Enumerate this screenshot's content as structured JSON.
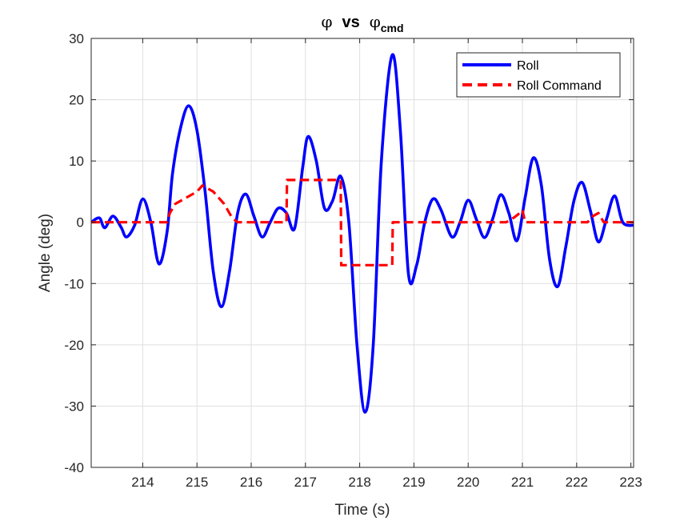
{
  "chart_data": {
    "type": "line",
    "title": {
      "symbol": "φ",
      "vs": "vs",
      "subscript": "cmd"
    },
    "xlabel": "Time (s)",
    "ylabel": "Angle (deg)",
    "xlim": [
      213.05,
      223.05
    ],
    "ylim": [
      -40,
      30
    ],
    "xticks": [
      214,
      215,
      216,
      217,
      218,
      219,
      220,
      221,
      222,
      223
    ],
    "yticks": [
      -40,
      -30,
      -20,
      -10,
      0,
      10,
      20,
      30
    ],
    "xtick_labels": [
      "214",
      "215",
      "216",
      "217",
      "218",
      "219",
      "220",
      "221",
      "222",
      "223"
    ],
    "ytick_labels": [
      "-40",
      "-30",
      "-20",
      "-10",
      "0",
      "10",
      "20",
      "30"
    ],
    "grid": true,
    "legend_placement": "top-right",
    "series": [
      {
        "name": "Roll",
        "color": "#0000ff",
        "style": "solid",
        "x": [
          213.05,
          213.2,
          213.3,
          213.45,
          213.6,
          213.7,
          213.85,
          214.0,
          214.15,
          214.3,
          214.45,
          214.55,
          214.7,
          214.85,
          215.0,
          215.15,
          215.3,
          215.45,
          215.6,
          215.75,
          215.9,
          216.05,
          216.2,
          216.35,
          216.5,
          216.65,
          216.8,
          216.95,
          217.05,
          217.2,
          217.35,
          217.5,
          217.65,
          217.8,
          217.95,
          218.1,
          218.25,
          218.4,
          218.6,
          218.75,
          218.9,
          219.05,
          219.2,
          219.35,
          219.5,
          219.7,
          219.85,
          220.0,
          220.15,
          220.3,
          220.45,
          220.6,
          220.75,
          220.9,
          221.05,
          221.2,
          221.35,
          221.5,
          221.65,
          221.8,
          221.95,
          222.1,
          222.25,
          222.4,
          222.55,
          222.7,
          222.85,
          223.05
        ],
        "y": [
          0.0,
          0.7,
          -0.9,
          1.0,
          -0.8,
          -2.4,
          -0.5,
          3.8,
          0.0,
          -6.8,
          -1.5,
          8.0,
          15.5,
          19.0,
          15.0,
          5.0,
          -8.0,
          -13.8,
          -8.0,
          1.5,
          4.6,
          1.0,
          -2.4,
          0.0,
          2.3,
          1.5,
          -1.0,
          9.0,
          14.0,
          10.0,
          2.3,
          3.5,
          7.5,
          0.0,
          -20.0,
          -31.0,
          -20.0,
          10.0,
          27.3,
          15.0,
          -8.5,
          -7.0,
          0.0,
          3.8,
          2.0,
          -2.4,
          0.0,
          3.6,
          0.5,
          -2.5,
          0.5,
          4.5,
          1.5,
          -3.0,
          4.0,
          10.5,
          6.0,
          -6.0,
          -10.5,
          -4.0,
          3.5,
          6.5,
          2.0,
          -3.2,
          0.5,
          4.3,
          0.0,
          -0.5
        ]
      },
      {
        "name": "Roll Command",
        "color": "#ff0000",
        "style": "dashed",
        "x": [
          213.05,
          214.45,
          214.5,
          214.6,
          214.8,
          215.0,
          215.1,
          215.3,
          215.5,
          215.65,
          215.75,
          216.65,
          216.66,
          217.65,
          217.66,
          218.6,
          218.61,
          220.7,
          220.85,
          220.95,
          221.0,
          221.05,
          222.2,
          222.3,
          222.4,
          222.5,
          223.05
        ],
        "y": [
          0,
          0,
          1.5,
          3.0,
          4.0,
          5.0,
          6.0,
          5.0,
          3.0,
          0.7,
          0,
          0,
          6.9,
          6.9,
          -7.0,
          -7.0,
          0,
          0,
          0.8,
          1.5,
          2.0,
          0,
          0,
          1.0,
          1.5,
          0,
          0
        ]
      }
    ]
  }
}
